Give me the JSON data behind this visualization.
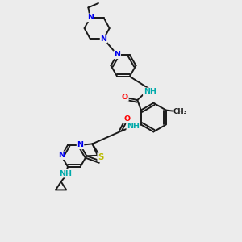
{
  "background_color": "#ececec",
  "figsize": [
    3.0,
    3.0
  ],
  "dpi": 100,
  "atom_colors": {
    "N": "#0000ee",
    "NH": "#00aaaa",
    "O": "#ff0000",
    "S": "#bbbb00",
    "C": "#1a1a1a"
  },
  "bond_color": "#1a1a1a",
  "bond_lw": 1.4,
  "font_size": 6.8
}
